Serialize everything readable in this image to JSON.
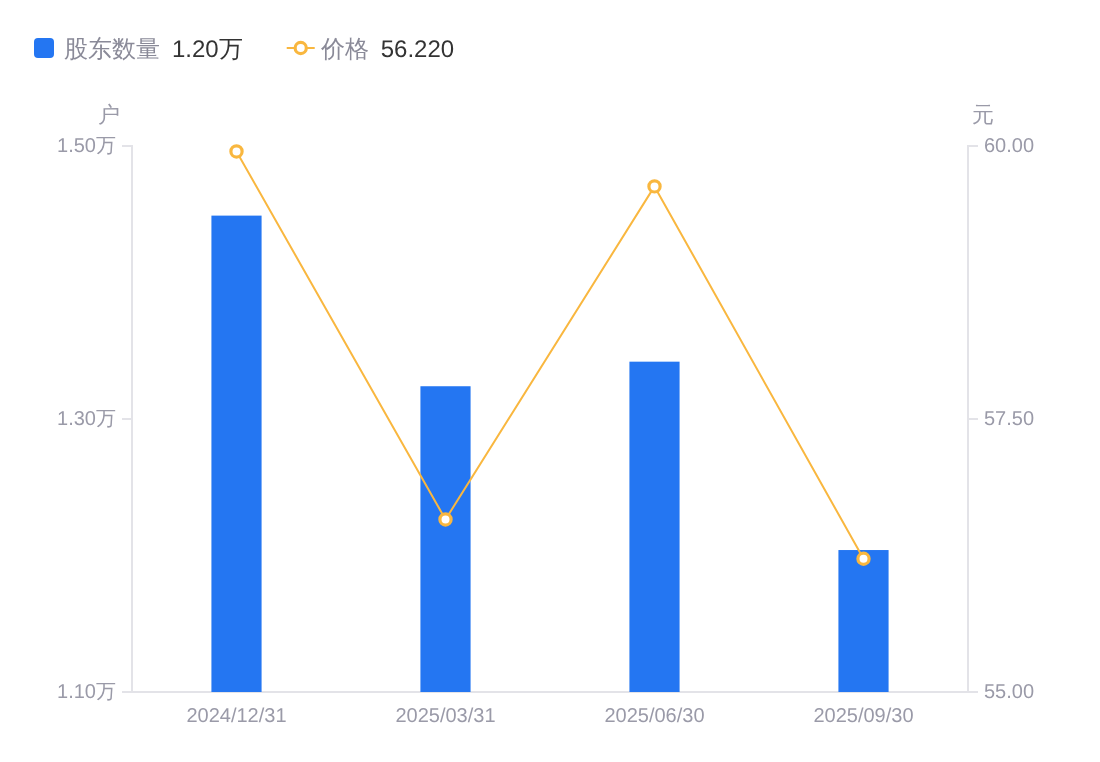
{
  "chart_data": {
    "type": "bar",
    "categories": [
      "2024/12/31",
      "2025/03/31",
      "2025/06/30",
      "2025/09/30"
    ],
    "ylabel": "户",
    "y2label": "元",
    "series": [
      {
        "name": "股东数量",
        "color": "#2476f2",
        "values": [
          1.449,
          1.324,
          1.342,
          1.204
        ]
      },
      {
        "name": "价格",
        "type": "line",
        "axis": "y2",
        "color": "#f9b73f",
        "values": [
          59.95,
          56.58,
          59.63,
          56.22
        ]
      }
    ],
    "ylim": [
      1.1,
      1.5
    ],
    "yticks": [
      {
        "value": 1.1,
        "label": "1.10万"
      },
      {
        "value": 1.3,
        "label": "1.30万"
      },
      {
        "value": 1.5,
        "label": "1.50万"
      }
    ],
    "y2lim": [
      55,
      60
    ],
    "y2ticks": [
      {
        "value": 55,
        "label": "55.00"
      },
      {
        "value": 57.5,
        "label": "57.50"
      },
      {
        "value": 60,
        "label": "60.00"
      }
    ],
    "annotations": [
      "1.20万",
      "56.220"
    ],
    "legend": "top left",
    "marker": "circle",
    "grid": false
  }
}
